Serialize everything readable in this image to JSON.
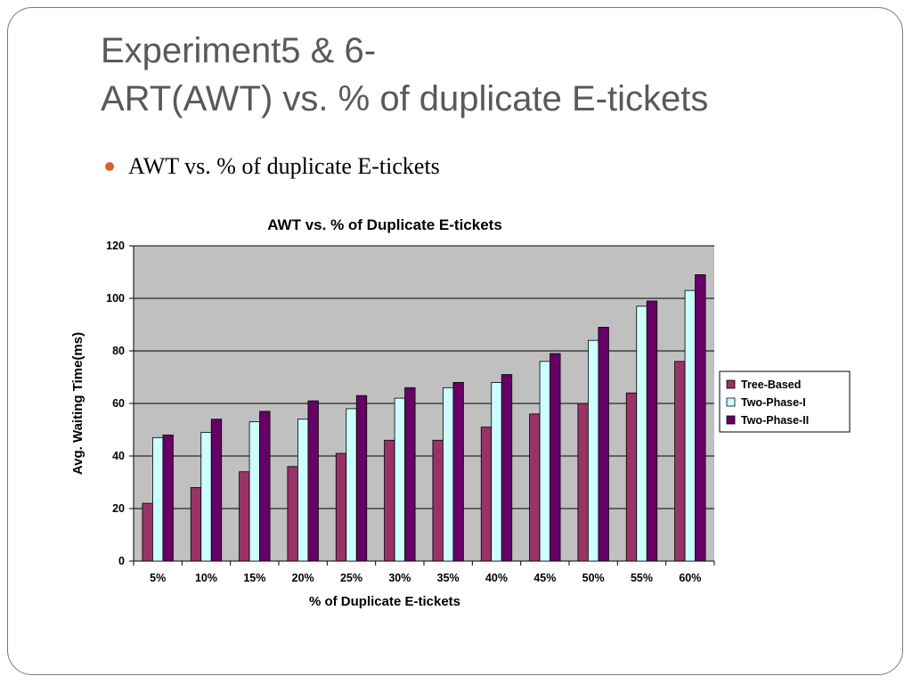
{
  "slide": {
    "title_line1": "Experiment5 & 6-",
    "title_line2": "ART(AWT) vs. % of duplicate E-tickets",
    "bullet": "AWT vs. % of duplicate E-tickets"
  },
  "colors": {
    "plot_background": "#c0c0c0",
    "tree_based": "#993366",
    "two_phase_1": "#ccffff",
    "two_phase_2": "#660066",
    "bullet": "#d8602c"
  },
  "chart_data": {
    "type": "bar",
    "title": "AWT vs. % of Duplicate E-tickets",
    "xlabel": "% of Duplicate E-tickets",
    "ylabel": "Avg. Waiting Time(ms)",
    "ylim": [
      0,
      120
    ],
    "yticks": [
      0,
      20,
      40,
      60,
      80,
      100,
      120
    ],
    "grid": true,
    "legend_position": "right",
    "categories": [
      "5%",
      "10%",
      "15%",
      "20%",
      "25%",
      "30%",
      "35%",
      "40%",
      "45%",
      "50%",
      "55%",
      "60%"
    ],
    "series": [
      {
        "name": "Tree-Based",
        "color": "#993366",
        "values": [
          22,
          28,
          34,
          36,
          41,
          46,
          46,
          51,
          56,
          60,
          64,
          76
        ]
      },
      {
        "name": "Two-Phase-I",
        "color": "#ccffff",
        "values": [
          47,
          49,
          53,
          54,
          58,
          62,
          66,
          68,
          76,
          84,
          97,
          103
        ]
      },
      {
        "name": "Two-Phase-II",
        "color": "#660066",
        "values": [
          48,
          54,
          57,
          61,
          63,
          66,
          68,
          71,
          79,
          89,
          99,
          109
        ]
      }
    ]
  }
}
